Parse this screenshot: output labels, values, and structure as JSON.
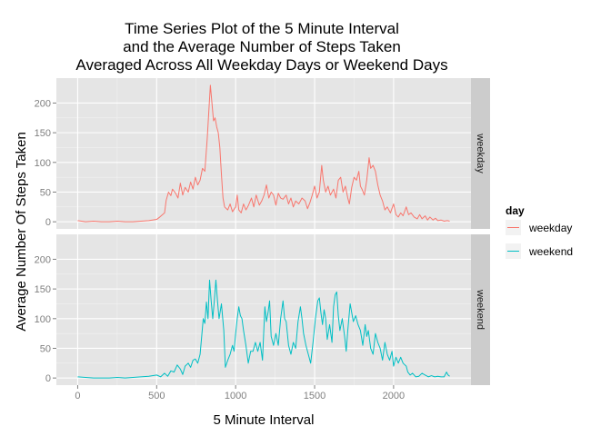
{
  "chart_data": {
    "type": "line",
    "title": [
      "Time Series Plot of the 5 Minute Interval",
      "and the Average Number of Steps Taken",
      "Averaged Across All Weekday Days or Weekend Days"
    ],
    "xlabel": "5 Minute Interval",
    "ylabel": "Average Number Of Steps Taken",
    "xlim": [
      -135,
      2490
    ],
    "ylim": [
      -12,
      242
    ],
    "xticks": [
      0,
      500,
      1000,
      1500,
      2000
    ],
    "yticks": [
      0,
      50,
      100,
      150,
      200
    ],
    "grid": true,
    "legend": {
      "title": "day",
      "placement": "right"
    },
    "facets": [
      "weekday",
      "weekend"
    ],
    "series": [
      {
        "name": "weekday",
        "facet": "weekday",
        "color": "#F8766D",
        "points": [
          [
            0,
            2
          ],
          [
            50,
            0
          ],
          [
            100,
            1
          ],
          [
            150,
            0
          ],
          [
            200,
            0
          ],
          [
            250,
            1
          ],
          [
            300,
            0
          ],
          [
            350,
            0
          ],
          [
            400,
            1
          ],
          [
            450,
            2
          ],
          [
            500,
            4
          ],
          [
            520,
            8
          ],
          [
            550,
            15
          ],
          [
            560,
            36
          ],
          [
            575,
            50
          ],
          [
            590,
            44
          ],
          [
            600,
            55
          ],
          [
            620,
            48
          ],
          [
            635,
            40
          ],
          [
            650,
            65
          ],
          [
            665,
            45
          ],
          [
            680,
            58
          ],
          [
            700,
            50
          ],
          [
            715,
            67
          ],
          [
            730,
            55
          ],
          [
            745,
            75
          ],
          [
            760,
            62
          ],
          [
            775,
            70
          ],
          [
            790,
            90
          ],
          [
            805,
            85
          ],
          [
            820,
            140
          ],
          [
            830,
            185
          ],
          [
            840,
            230
          ],
          [
            850,
            200
          ],
          [
            860,
            170
          ],
          [
            870,
            175
          ],
          [
            880,
            160
          ],
          [
            890,
            150
          ],
          [
            900,
            125
          ],
          [
            910,
            80
          ],
          [
            920,
            40
          ],
          [
            930,
            25
          ],
          [
            950,
            20
          ],
          [
            965,
            30
          ],
          [
            980,
            17
          ],
          [
            1000,
            25
          ],
          [
            1010,
            45
          ],
          [
            1020,
            20
          ],
          [
            1035,
            15
          ],
          [
            1050,
            30
          ],
          [
            1065,
            20
          ],
          [
            1080,
            27
          ],
          [
            1100,
            40
          ],
          [
            1115,
            25
          ],
          [
            1130,
            45
          ],
          [
            1150,
            28
          ],
          [
            1165,
            35
          ],
          [
            1180,
            45
          ],
          [
            1195,
            62
          ],
          [
            1210,
            40
          ],
          [
            1225,
            50
          ],
          [
            1240,
            45
          ],
          [
            1255,
            28
          ],
          [
            1270,
            48
          ],
          [
            1285,
            40
          ],
          [
            1300,
            38
          ],
          [
            1320,
            45
          ],
          [
            1335,
            30
          ],
          [
            1350,
            40
          ],
          [
            1365,
            25
          ],
          [
            1380,
            35
          ],
          [
            1400,
            30
          ],
          [
            1420,
            40
          ],
          [
            1440,
            35
          ],
          [
            1455,
            22
          ],
          [
            1470,
            32
          ],
          [
            1485,
            45
          ],
          [
            1500,
            60
          ],
          [
            1515,
            40
          ],
          [
            1530,
            50
          ],
          [
            1545,
            95
          ],
          [
            1555,
            70
          ],
          [
            1570,
            50
          ],
          [
            1585,
            60
          ],
          [
            1600,
            45
          ],
          [
            1620,
            55
          ],
          [
            1635,
            40
          ],
          [
            1650,
            70
          ],
          [
            1665,
            75
          ],
          [
            1680,
            50
          ],
          [
            1695,
            60
          ],
          [
            1710,
            40
          ],
          [
            1720,
            30
          ],
          [
            1735,
            58
          ],
          [
            1750,
            75
          ],
          [
            1765,
            70
          ],
          [
            1780,
            85
          ],
          [
            1790,
            60
          ],
          [
            1800,
            55
          ],
          [
            1815,
            45
          ],
          [
            1830,
            70
          ],
          [
            1845,
            108
          ],
          [
            1855,
            90
          ],
          [
            1870,
            95
          ],
          [
            1885,
            85
          ],
          [
            1900,
            62
          ],
          [
            1915,
            45
          ],
          [
            1930,
            35
          ],
          [
            1945,
            20
          ],
          [
            1960,
            25
          ],
          [
            1980,
            15
          ],
          [
            2000,
            30
          ],
          [
            2015,
            12
          ],
          [
            2030,
            8
          ],
          [
            2045,
            15
          ],
          [
            2060,
            10
          ],
          [
            2080,
            25
          ],
          [
            2095,
            12
          ],
          [
            2110,
            15
          ],
          [
            2130,
            8
          ],
          [
            2150,
            5
          ],
          [
            2165,
            12
          ],
          [
            2180,
            5
          ],
          [
            2200,
            10
          ],
          [
            2215,
            3
          ],
          [
            2230,
            8
          ],
          [
            2250,
            3
          ],
          [
            2265,
            6
          ],
          [
            2280,
            2
          ],
          [
            2300,
            3
          ],
          [
            2320,
            1
          ],
          [
            2340,
            2
          ],
          [
            2355,
            1
          ]
        ]
      },
      {
        "name": "weekend",
        "facet": "weekend",
        "color": "#00BFC4",
        "points": [
          [
            0,
            2
          ],
          [
            50,
            1
          ],
          [
            100,
            0
          ],
          [
            150,
            0
          ],
          [
            200,
            0
          ],
          [
            250,
            1
          ],
          [
            300,
            0
          ],
          [
            350,
            1
          ],
          [
            400,
            2
          ],
          [
            450,
            3
          ],
          [
            500,
            5
          ],
          [
            525,
            2
          ],
          [
            550,
            8
          ],
          [
            570,
            3
          ],
          [
            590,
            12
          ],
          [
            610,
            10
          ],
          [
            630,
            22
          ],
          [
            650,
            15
          ],
          [
            665,
            6
          ],
          [
            680,
            20
          ],
          [
            700,
            25
          ],
          [
            715,
            18
          ],
          [
            730,
            30
          ],
          [
            745,
            32
          ],
          [
            760,
            25
          ],
          [
            775,
            40
          ],
          [
            785,
            70
          ],
          [
            795,
            100
          ],
          [
            805,
            92
          ],
          [
            815,
            128
          ],
          [
            825,
            100
          ],
          [
            835,
            165
          ],
          [
            845,
            130
          ],
          [
            855,
            100
          ],
          [
            865,
            130
          ],
          [
            875,
            165
          ],
          [
            885,
            130
          ],
          [
            895,
            100
          ],
          [
            910,
            125
          ],
          [
            925,
            80
          ],
          [
            935,
            18
          ],
          [
            950,
            30
          ],
          [
            965,
            40
          ],
          [
            980,
            55
          ],
          [
            990,
            45
          ],
          [
            1000,
            75
          ],
          [
            1010,
            100
          ],
          [
            1020,
            120
          ],
          [
            1030,
            105
          ],
          [
            1040,
            100
          ],
          [
            1050,
            80
          ],
          [
            1065,
            55
          ],
          [
            1080,
            25
          ],
          [
            1095,
            45
          ],
          [
            1110,
            45
          ],
          [
            1125,
            60
          ],
          [
            1140,
            45
          ],
          [
            1155,
            60
          ],
          [
            1170,
            30
          ],
          [
            1185,
            120
          ],
          [
            1195,
            95
          ],
          [
            1205,
            110
          ],
          [
            1215,
            130
          ],
          [
            1225,
            70
          ],
          [
            1240,
            55
          ],
          [
            1255,
            75
          ],
          [
            1270,
            55
          ],
          [
            1285,
            100
          ],
          [
            1300,
            130
          ],
          [
            1310,
            100
          ],
          [
            1320,
            95
          ],
          [
            1335,
            55
          ],
          [
            1350,
            40
          ],
          [
            1365,
            60
          ],
          [
            1380,
            50
          ],
          [
            1395,
            95
          ],
          [
            1410,
            120
          ],
          [
            1420,
            100
          ],
          [
            1430,
            75
          ],
          [
            1445,
            55
          ],
          [
            1460,
            40
          ],
          [
            1475,
            25
          ],
          [
            1490,
            60
          ],
          [
            1505,
            100
          ],
          [
            1520,
            130
          ],
          [
            1530,
            135
          ],
          [
            1540,
            110
          ],
          [
            1550,
            90
          ],
          [
            1560,
            115
          ],
          [
            1570,
            100
          ],
          [
            1580,
            65
          ],
          [
            1595,
            90
          ],
          [
            1610,
            60
          ],
          [
            1620,
            120
          ],
          [
            1630,
            140
          ],
          [
            1640,
            145
          ],
          [
            1650,
            105
          ],
          [
            1660,
            80
          ],
          [
            1675,
            100
          ],
          [
            1690,
            70
          ],
          [
            1700,
            45
          ],
          [
            1710,
            80
          ],
          [
            1725,
            125
          ],
          [
            1735,
            110
          ],
          [
            1745,
            95
          ],
          [
            1760,
            105
          ],
          [
            1775,
            90
          ],
          [
            1790,
            80
          ],
          [
            1805,
            55
          ],
          [
            1820,
            90
          ],
          [
            1830,
            70
          ],
          [
            1840,
            80
          ],
          [
            1855,
            50
          ],
          [
            1870,
            40
          ],
          [
            1885,
            75
          ],
          [
            1900,
            60
          ],
          [
            1915,
            50
          ],
          [
            1930,
            30
          ],
          [
            1945,
            60
          ],
          [
            1960,
            40
          ],
          [
            1975,
            30
          ],
          [
            1990,
            45
          ],
          [
            2000,
            20
          ],
          [
            2015,
            35
          ],
          [
            2030,
            25
          ],
          [
            2045,
            35
          ],
          [
            2060,
            25
          ],
          [
            2080,
            20
          ],
          [
            2090,
            10
          ],
          [
            2105,
            5
          ],
          [
            2120,
            8
          ],
          [
            2140,
            2
          ],
          [
            2160,
            3
          ],
          [
            2180,
            8
          ],
          [
            2200,
            5
          ],
          [
            2220,
            2
          ],
          [
            2240,
            4
          ],
          [
            2260,
            2
          ],
          [
            2280,
            3
          ],
          [
            2300,
            2
          ],
          [
            2320,
            2
          ],
          [
            2335,
            10
          ],
          [
            2345,
            5
          ],
          [
            2355,
            3
          ]
        ]
      }
    ]
  }
}
